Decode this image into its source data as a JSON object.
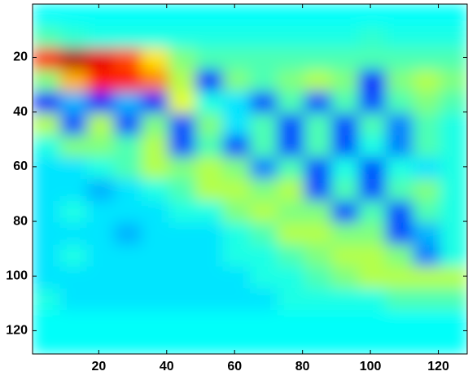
{
  "chart_data": {
    "type": "heatmap",
    "colormap": "jet",
    "clim": [
      0,
      1
    ],
    "xlim": [
      0.5,
      128.5
    ],
    "ylim": [
      0.5,
      128.5
    ],
    "y_reversed": true,
    "xticks": [
      20,
      40,
      60,
      80,
      100,
      120
    ],
    "yticks": [
      20,
      40,
      60,
      80,
      100,
      120
    ],
    "z": [
      [
        0.38,
        0.38,
        0.38,
        0.38,
        0.38,
        0.38,
        0.38,
        0.38,
        0.38,
        0.38,
        0.38,
        0.38,
        0.38,
        0.38,
        0.38,
        0.38
      ],
      [
        0.45,
        0.42,
        0.4,
        0.4,
        0.4,
        0.4,
        0.4,
        0.4,
        0.4,
        0.4,
        0.4,
        0.4,
        0.42,
        0.4,
        0.4,
        0.4
      ],
      [
        0.85,
        0.95,
        0.9,
        0.8,
        0.65,
        0.5,
        0.45,
        0.45,
        0.45,
        0.45,
        0.45,
        0.45,
        0.45,
        0.45,
        0.45,
        0.45
      ],
      [
        0.5,
        0.7,
        0.85,
        0.85,
        0.75,
        0.55,
        0.15,
        0.5,
        0.45,
        0.5,
        0.55,
        0.5,
        0.15,
        0.5,
        0.55,
        0.5
      ],
      [
        0.15,
        0.3,
        0.15,
        0.3,
        0.15,
        0.6,
        0.4,
        0.35,
        0.2,
        0.45,
        0.2,
        0.45,
        0.2,
        0.45,
        0.5,
        0.45
      ],
      [
        0.55,
        0.2,
        0.55,
        0.2,
        0.5,
        0.2,
        0.5,
        0.35,
        0.45,
        0.2,
        0.45,
        0.2,
        0.45,
        0.25,
        0.45,
        0.4
      ],
      [
        0.4,
        0.5,
        0.5,
        0.45,
        0.55,
        0.2,
        0.45,
        0.2,
        0.45,
        0.2,
        0.45,
        0.2,
        0.4,
        0.25,
        0.45,
        0.4
      ],
      [
        0.35,
        0.35,
        0.4,
        0.45,
        0.55,
        0.5,
        0.55,
        0.5,
        0.25,
        0.45,
        0.2,
        0.4,
        0.2,
        0.4,
        0.35,
        0.4
      ],
      [
        0.35,
        0.35,
        0.3,
        0.35,
        0.4,
        0.45,
        0.55,
        0.55,
        0.5,
        0.55,
        0.2,
        0.45,
        0.2,
        0.45,
        0.5,
        0.4
      ],
      [
        0.35,
        0.4,
        0.35,
        0.35,
        0.35,
        0.4,
        0.4,
        0.5,
        0.55,
        0.5,
        0.5,
        0.2,
        0.45,
        0.2,
        0.45,
        0.4
      ],
      [
        0.35,
        0.35,
        0.35,
        0.3,
        0.35,
        0.35,
        0.35,
        0.4,
        0.45,
        0.55,
        0.55,
        0.5,
        0.5,
        0.2,
        0.3,
        0.4
      ],
      [
        0.35,
        0.4,
        0.35,
        0.35,
        0.35,
        0.35,
        0.35,
        0.4,
        0.4,
        0.45,
        0.5,
        0.55,
        0.55,
        0.5,
        0.25,
        0.4
      ],
      [
        0.35,
        0.35,
        0.35,
        0.35,
        0.35,
        0.35,
        0.35,
        0.35,
        0.4,
        0.4,
        0.45,
        0.5,
        0.55,
        0.55,
        0.55,
        0.55
      ],
      [
        0.4,
        0.35,
        0.35,
        0.35,
        0.35,
        0.35,
        0.35,
        0.35,
        0.35,
        0.4,
        0.4,
        0.4,
        0.4,
        0.45,
        0.45,
        0.45
      ],
      [
        0.38,
        0.38,
        0.38,
        0.38,
        0.38,
        0.38,
        0.38,
        0.38,
        0.38,
        0.38,
        0.38,
        0.38,
        0.38,
        0.38,
        0.38,
        0.38
      ],
      [
        0.38,
        0.38,
        0.38,
        0.38,
        0.38,
        0.38,
        0.38,
        0.38,
        0.38,
        0.38,
        0.38,
        0.38,
        0.38,
        0.38,
        0.38,
        0.38
      ]
    ]
  }
}
